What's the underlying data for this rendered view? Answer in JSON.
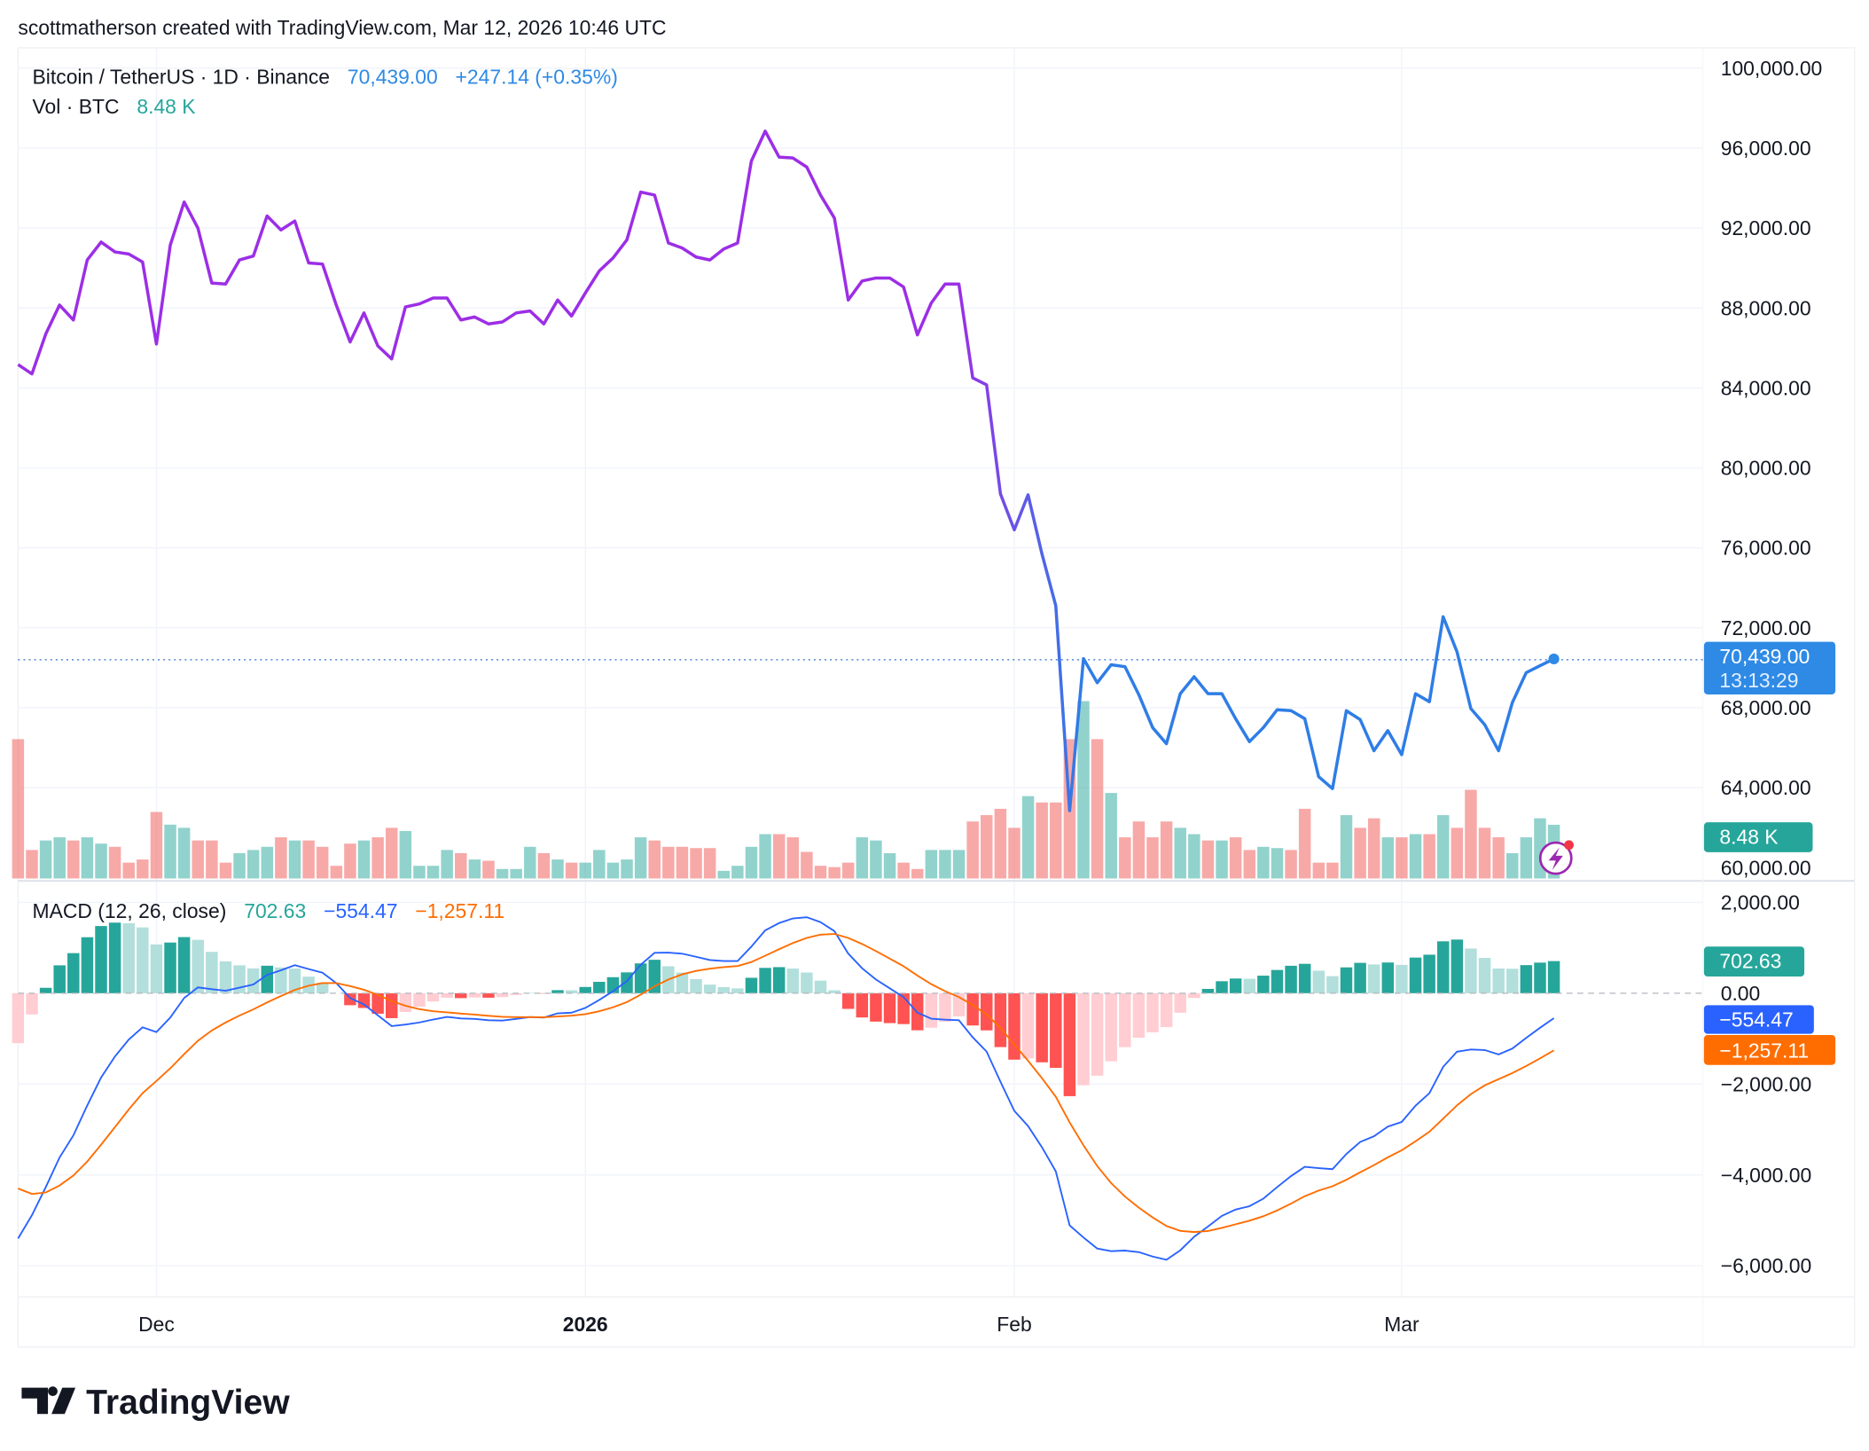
{
  "header": {
    "caption": "scottmatherson created with TradingView.com, Mar 12, 2026 10:46 UTC"
  },
  "legend": {
    "symbol": "Bitcoin / TetherUS · 1D · Binance",
    "last_price": "70,439.00",
    "change": "+247.14 (+0.35%)",
    "volume_label": "Vol · BTC",
    "volume_value": "8.48 K",
    "macd_label": "MACD (12, 26, close)",
    "macd_hist": "702.63",
    "macd_line": "−554.47",
    "macd_signal": "−1,257.11"
  },
  "badges": {
    "price": "70,439.00",
    "countdown": "13:13:29",
    "volume": "8.48 K",
    "hist": "702.63",
    "macd": "−554.47",
    "signal": "−1,257.11"
  },
  "price_axis": [
    "100,000.00",
    "96,000.00",
    "92,000.00",
    "88,000.00",
    "84,000.00",
    "80,000.00",
    "76,000.00",
    "72,000.00",
    "68,000.00",
    "64,000.00",
    "60,000.00"
  ],
  "macd_axis": [
    "2,000.00",
    "0.00",
    "−2,000.00",
    "−4,000.00",
    "−6,000.00"
  ],
  "time_axis": [
    {
      "label": "Dec",
      "bold": false
    },
    {
      "label": "2026",
      "bold": true
    },
    {
      "label": "Feb",
      "bold": false
    },
    {
      "label": "Mar",
      "bold": false
    }
  ],
  "logo": "TradingView",
  "colors": {
    "price_early": "#9c2ee6",
    "price_late": "#2f8ae5",
    "up": "#26a69a",
    "down": "#ef5350",
    "macd": "#2962ff",
    "signal": "#ff6d00"
  },
  "chart_data": {
    "type": "line",
    "symbol": "BTCUSDT",
    "interval": "1D",
    "x_start": "2025-11-21",
    "x_end": "2026-03-12",
    "price_ylim": [
      60000,
      100000
    ],
    "macd_ylim": [
      -6000,
      2000
    ],
    "macd_params": [
      12,
      26,
      9
    ],
    "grid": true,
    "close": [
      85170,
      84700,
      86700,
      88150,
      87400,
      90400,
      91300,
      90800,
      90700,
      90300,
      86200,
      91150,
      93300,
      92000,
      89250,
      89200,
      90400,
      90600,
      92600,
      91900,
      92350,
      90250,
      90200,
      88150,
      86300,
      87750,
      86100,
      85450,
      88050,
      88200,
      88500,
      88500,
      87400,
      87550,
      87200,
      87300,
      87750,
      87850,
      87200,
      88400,
      87600,
      88750,
      89850,
      90500,
      91400,
      93800,
      93650,
      91250,
      91000,
      90550,
      90400,
      90950,
      91250,
      95350,
      96850,
      95550,
      95500,
      95050,
      93650,
      92500,
      88400,
      89350,
      89500,
      89500,
      89050,
      86650,
      88250,
      89200,
      89200,
      84500,
      84150,
      78700,
      76900,
      78650,
      75700,
      73100,
      62850,
      70450,
      69250,
      70150,
      70050,
      68650,
      67000,
      66200,
      68700,
      69550,
      68700,
      68700,
      67450,
      66300,
      67000,
      67900,
      67850,
      67450,
      64550,
      63950,
      67850,
      67400,
      65850,
      66850,
      65650,
      68700,
      68300,
      72550,
      70800,
      67950,
      67150,
      65850,
      68250,
      69750,
      70100,
      70439
    ],
    "volume_k": [
      22,
      4.5,
      6,
      6.5,
      6,
      6.5,
      5.5,
      5,
      2.5,
      3,
      10.5,
      8.5,
      8,
      6,
      6,
      2.5,
      4,
      4.5,
      5,
      6.5,
      6,
      6,
      5,
      2,
      5.5,
      6,
      6.5,
      8,
      7.5,
      2,
      2,
      4.5,
      4,
      3,
      2.8,
      1.5,
      1.5,
      5,
      4,
      3,
      2.5,
      2.5,
      4.5,
      2.5,
      3,
      6.5,
      6,
      5,
      5,
      4.8,
      4.8,
      1.2,
      2,
      5,
      7,
      7,
      6.5,
      4.2,
      2,
      1.8,
      2.5,
      6.5,
      6,
      4,
      2.5,
      1.5,
      4.5,
      4.5,
      4.5,
      9,
      10,
      11,
      8,
      13,
      12,
      12,
      22,
      28,
      22,
      13.5,
      6.5,
      9,
      6.5,
      9,
      8,
      7,
      6,
      6,
      6.5,
      4.5,
      5,
      4.8,
      4.5,
      11,
      2.5,
      2.5,
      10,
      8,
      9.5,
      6.5,
      6.5,
      7,
      7,
      10,
      8,
      14,
      8,
      6.5,
      4,
      6.5,
      9.5,
      8.48
    ]
  }
}
